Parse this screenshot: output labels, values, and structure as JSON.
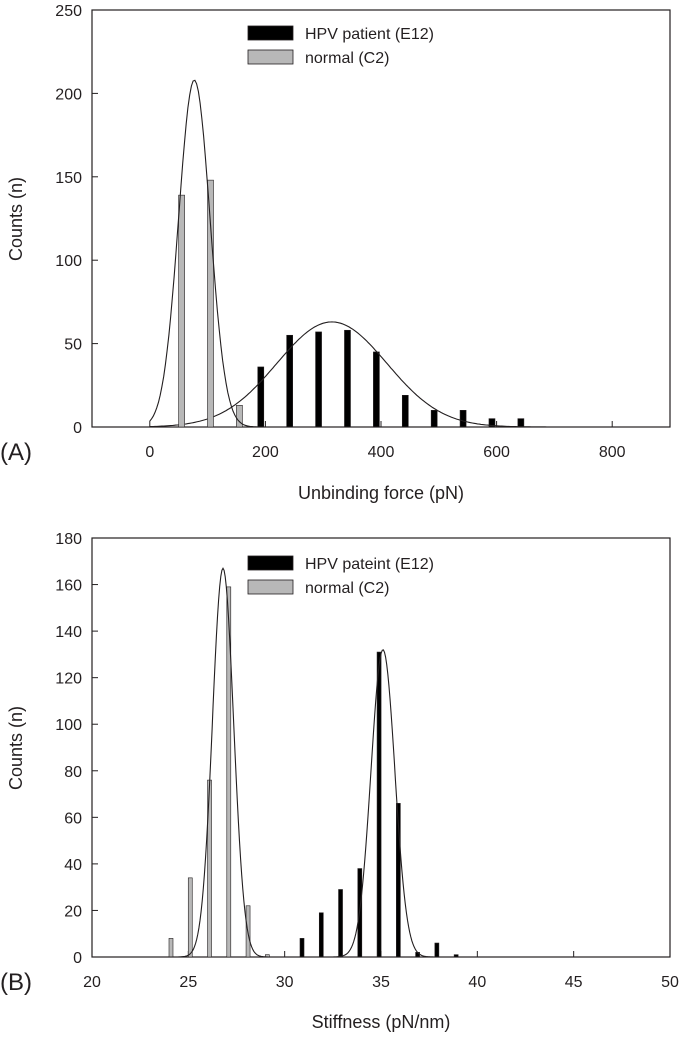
{
  "chart_data": [
    {
      "type": "bar",
      "panel_label": "(A)",
      "xlabel": "Unbinding force (pN)",
      "ylabel": "Counts (n)",
      "xlim": [
        -100,
        900
      ],
      "ylim": [
        0,
        250
      ],
      "xticks": [
        0,
        200,
        400,
        600,
        800
      ],
      "yticks": [
        0,
        50,
        100,
        150,
        200,
        250
      ],
      "grid": false,
      "legend_position": "top-center",
      "series": [
        {
          "name": "HPV patient (E12)",
          "color": "#000000",
          "x": [
            192,
            242,
            292,
            342,
            392,
            442,
            492,
            542,
            592,
            642
          ],
          "values": [
            36,
            55,
            57,
            58,
            45,
            19,
            10,
            10,
            5,
            5
          ],
          "fit": {
            "type": "gaussian",
            "peak": 63,
            "mean": 315,
            "sd": 95
          }
        },
        {
          "name": "normal (C2)",
          "color": "#b8b8b8",
          "x": [
            55,
            105,
            155
          ],
          "values": [
            139,
            148,
            13
          ],
          "fit": {
            "type": "gaussian",
            "peak": 208,
            "mean": 77,
            "sd": 27
          }
        }
      ]
    },
    {
      "type": "bar",
      "panel_label": "(B)",
      "xlabel": "Stiffness (pN/nm)",
      "ylabel": "Counts (n)",
      "xlim": [
        20,
        50
      ],
      "ylim": [
        0,
        180
      ],
      "xticks": [
        20,
        25,
        30,
        35,
        40,
        45,
        50
      ],
      "yticks": [
        0,
        20,
        40,
        60,
        80,
        100,
        120,
        140,
        160,
        180
      ],
      "grid": false,
      "legend_position": "top-center",
      "series": [
        {
          "name": "HPV pateint (E12)",
          "color": "#000000",
          "x": [
            30.9,
            31.9,
            32.9,
            33.9,
            34.9,
            35.9,
            36.9,
            37.9,
            38.9
          ],
          "values": [
            8,
            19,
            29,
            38,
            131,
            66,
            2,
            6,
            1
          ],
          "fit": {
            "type": "gaussian",
            "peak": 132,
            "mean": 35.1,
            "sd": 0.62
          }
        },
        {
          "name": "normal (C2)",
          "color": "#b8b8b8",
          "x": [
            24.1,
            25.1,
            26.1,
            27.1,
            28.1,
            29.1
          ],
          "values": [
            8,
            34,
            76,
            159,
            22,
            1
          ],
          "fit": {
            "type": "gaussian",
            "peak": 167,
            "mean": 26.8,
            "sd": 0.55
          }
        }
      ]
    }
  ]
}
